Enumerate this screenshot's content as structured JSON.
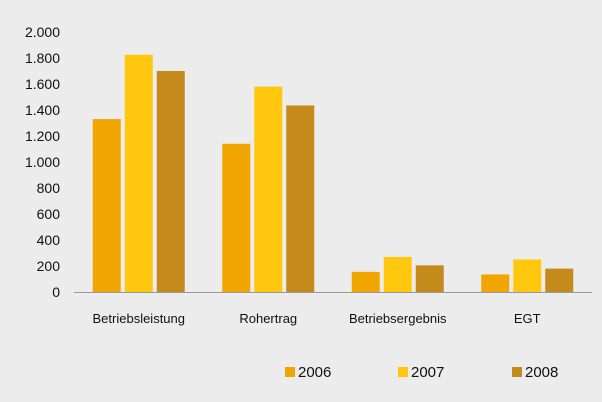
{
  "chart_data": {
    "type": "bar",
    "categories": [
      "Betriebsleistung",
      "Rohertrag",
      "Betriebsergebnis",
      "EGT"
    ],
    "series": [
      {
        "name": "2006",
        "values": [
          1330,
          1140,
          155,
          135
        ],
        "color": "#f0a500"
      },
      {
        "name": "2007",
        "values": [
          1825,
          1580,
          270,
          250
        ],
        "color": "#ffc80f"
      },
      {
        "name": "2008",
        "values": [
          1700,
          1435,
          205,
          180
        ],
        "color": "#c48a1c"
      }
    ],
    "yticks": [
      0,
      200,
      400,
      600,
      800,
      1000,
      1200,
      1400,
      1600,
      1800,
      2000
    ],
    "ytick_labels": [
      "0",
      "200",
      "400",
      "600",
      "800",
      "1.000",
      "1.200",
      "1.400",
      "1.600",
      "1.800",
      "2.000"
    ],
    "ylim": [
      0,
      2000
    ],
    "grid": false,
    "legend_position": "bottom-right",
    "background": "#ececec",
    "axis_color": "#9a9a9a"
  }
}
